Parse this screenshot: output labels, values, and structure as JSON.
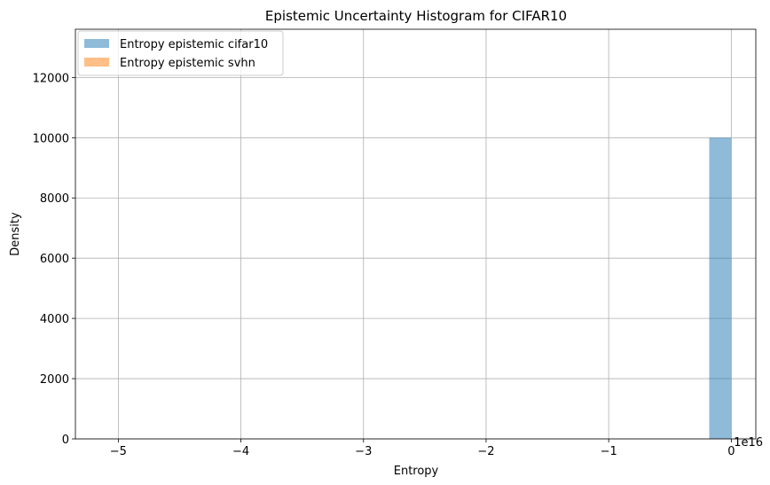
{
  "chart_data": {
    "type": "histogram",
    "title": "Epistemic Uncertainty Histogram for CIFAR10",
    "xlabel": "Entropy",
    "ylabel": "Density",
    "x_offset_label": "1e16",
    "xlim": [
      -5.35,
      0.2
    ],
    "ylim": [
      0,
      13600
    ],
    "x_ticks": [
      -5,
      -4,
      -3,
      -2,
      -1,
      0
    ],
    "x_tick_labels": [
      "−5",
      "−4",
      "−3",
      "−2",
      "−1",
      "0"
    ],
    "y_ticks": [
      0,
      2000,
      4000,
      6000,
      8000,
      10000,
      12000
    ],
    "y_tick_labels": [
      "0",
      "2000",
      "4000",
      "6000",
      "8000",
      "10000",
      "12000"
    ],
    "grid": true,
    "legend_position": "top-left",
    "series": [
      {
        "name": "Entropy epistemic cifar10",
        "color": "#1f77b4",
        "opacity": 0.5,
        "bins": [
          {
            "x0": -0.18,
            "x1": 0.0,
            "value": 10000
          }
        ]
      },
      {
        "name": "Entropy epistemic svhn",
        "color": "#ff7f0e",
        "opacity": 0.5,
        "bins": []
      }
    ]
  }
}
